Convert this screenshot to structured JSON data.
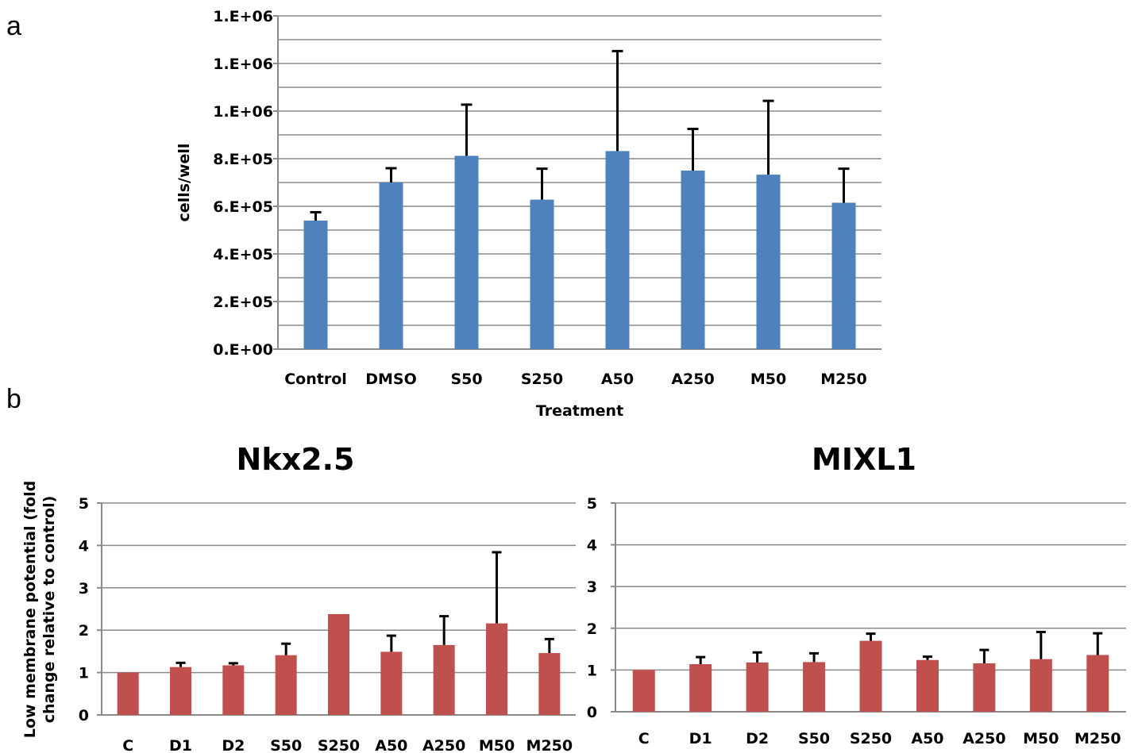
{
  "panel_labels": [
    "a",
    "b"
  ],
  "chart_data": [
    {
      "id": "a",
      "type": "bar",
      "title": "",
      "xlabel": "Treatment",
      "ylabel": "cells/well",
      "categories": [
        "Control",
        "DMSO",
        "S50",
        "S250",
        "A50",
        "A250",
        "M50",
        "M250"
      ],
      "values": [
        540000,
        700000,
        812000,
        628000,
        832000,
        750000,
        733000,
        615000
      ],
      "error": [
        35000,
        60000,
        215000,
        130000,
        420000,
        175000,
        310000,
        143000
      ],
      "ylim": [
        0,
        1400000
      ],
      "yticks": [
        0,
        200000,
        400000,
        600000,
        800000,
        1000000,
        1200000,
        1400000
      ],
      "ytick_labels": [
        "0.E+00",
        "2.E+05",
        "4.E+05",
        "6.E+05",
        "8.E+05",
        "1.E+06",
        "1.E+06",
        "1.E+06"
      ],
      "grid": true,
      "color": "#4F81BD"
    },
    {
      "id": "b1",
      "type": "bar",
      "title": "Nkx2.5",
      "xlabel": "",
      "ylabel": "Low membrane potential (fold change relative to control)",
      "categories": [
        "C",
        "D1",
        "D2",
        "S50",
        "S250",
        "A50",
        "A250",
        "M50",
        "M250"
      ],
      "values": [
        1.0,
        1.13,
        1.17,
        1.41,
        2.38,
        1.49,
        1.65,
        2.16,
        1.46
      ],
      "error": [
        0,
        0.1,
        0.05,
        0.27,
        0,
        0.38,
        0.68,
        1.68,
        0.33
      ],
      "ylim": [
        0,
        5
      ],
      "yticks": [
        0,
        1,
        2,
        3,
        4,
        5
      ],
      "ytick_labels": [
        "0",
        "1",
        "2",
        "3",
        "4",
        "5"
      ],
      "grid": true,
      "color": "#C0504D"
    },
    {
      "id": "b2",
      "type": "bar",
      "title": "MIXL1",
      "xlabel": "",
      "ylabel": "",
      "categories": [
        "C",
        "D1",
        "D2",
        "S50",
        "S250",
        "A50",
        "A250",
        "M50",
        "M250"
      ],
      "values": [
        1.0,
        1.14,
        1.18,
        1.19,
        1.7,
        1.24,
        1.16,
        1.26,
        1.36
      ],
      "error": [
        0,
        0.17,
        0.24,
        0.21,
        0.17,
        0.08,
        0.32,
        0.65,
        0.52
      ],
      "ylim": [
        0,
        5
      ],
      "yticks": [
        0,
        1,
        2,
        3,
        4,
        5
      ],
      "ytick_labels": [
        "0",
        "1",
        "2",
        "3",
        "4",
        "5"
      ],
      "grid": true,
      "color": "#C0504D"
    }
  ]
}
